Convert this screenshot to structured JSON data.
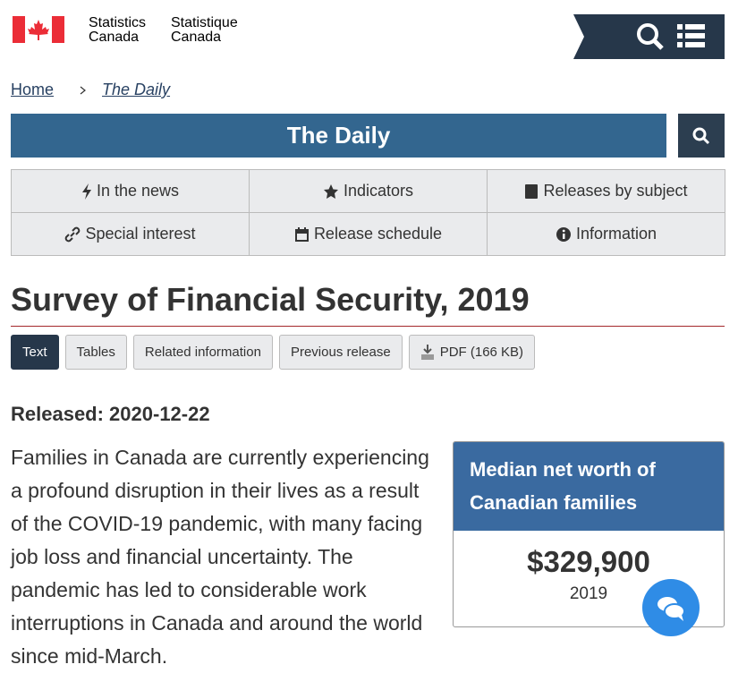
{
  "brand": {
    "en_line1": "Statistics",
    "en_line2": "Canada",
    "fr_line1": "Statistique",
    "fr_line2": "Canada"
  },
  "breadcrumb": [
    "Home",
    "The Daily"
  ],
  "banner_title": "The Daily",
  "nav": [
    "In the news",
    "Indicators",
    "Releases by subject",
    "Special interest",
    "Release schedule",
    "Information"
  ],
  "page_title": "Survey of Financial Security, 2019",
  "tabs": [
    "Text",
    "Tables",
    "Related information",
    "Previous release",
    "PDF (166 KB)"
  ],
  "released": "Released: 2020-12-22",
  "body": "Families in Canada are currently experiencing a profound disruption in their lives as a result of the COVID-19 pandemic, with many facing job loss and financial uncertainty. The pandemic has led to considerable work interruptions in Canada and around the world since mid-March.",
  "infobox": {
    "title": "Median net worth of Canadian families",
    "value": "$329,900",
    "year": "2019"
  }
}
